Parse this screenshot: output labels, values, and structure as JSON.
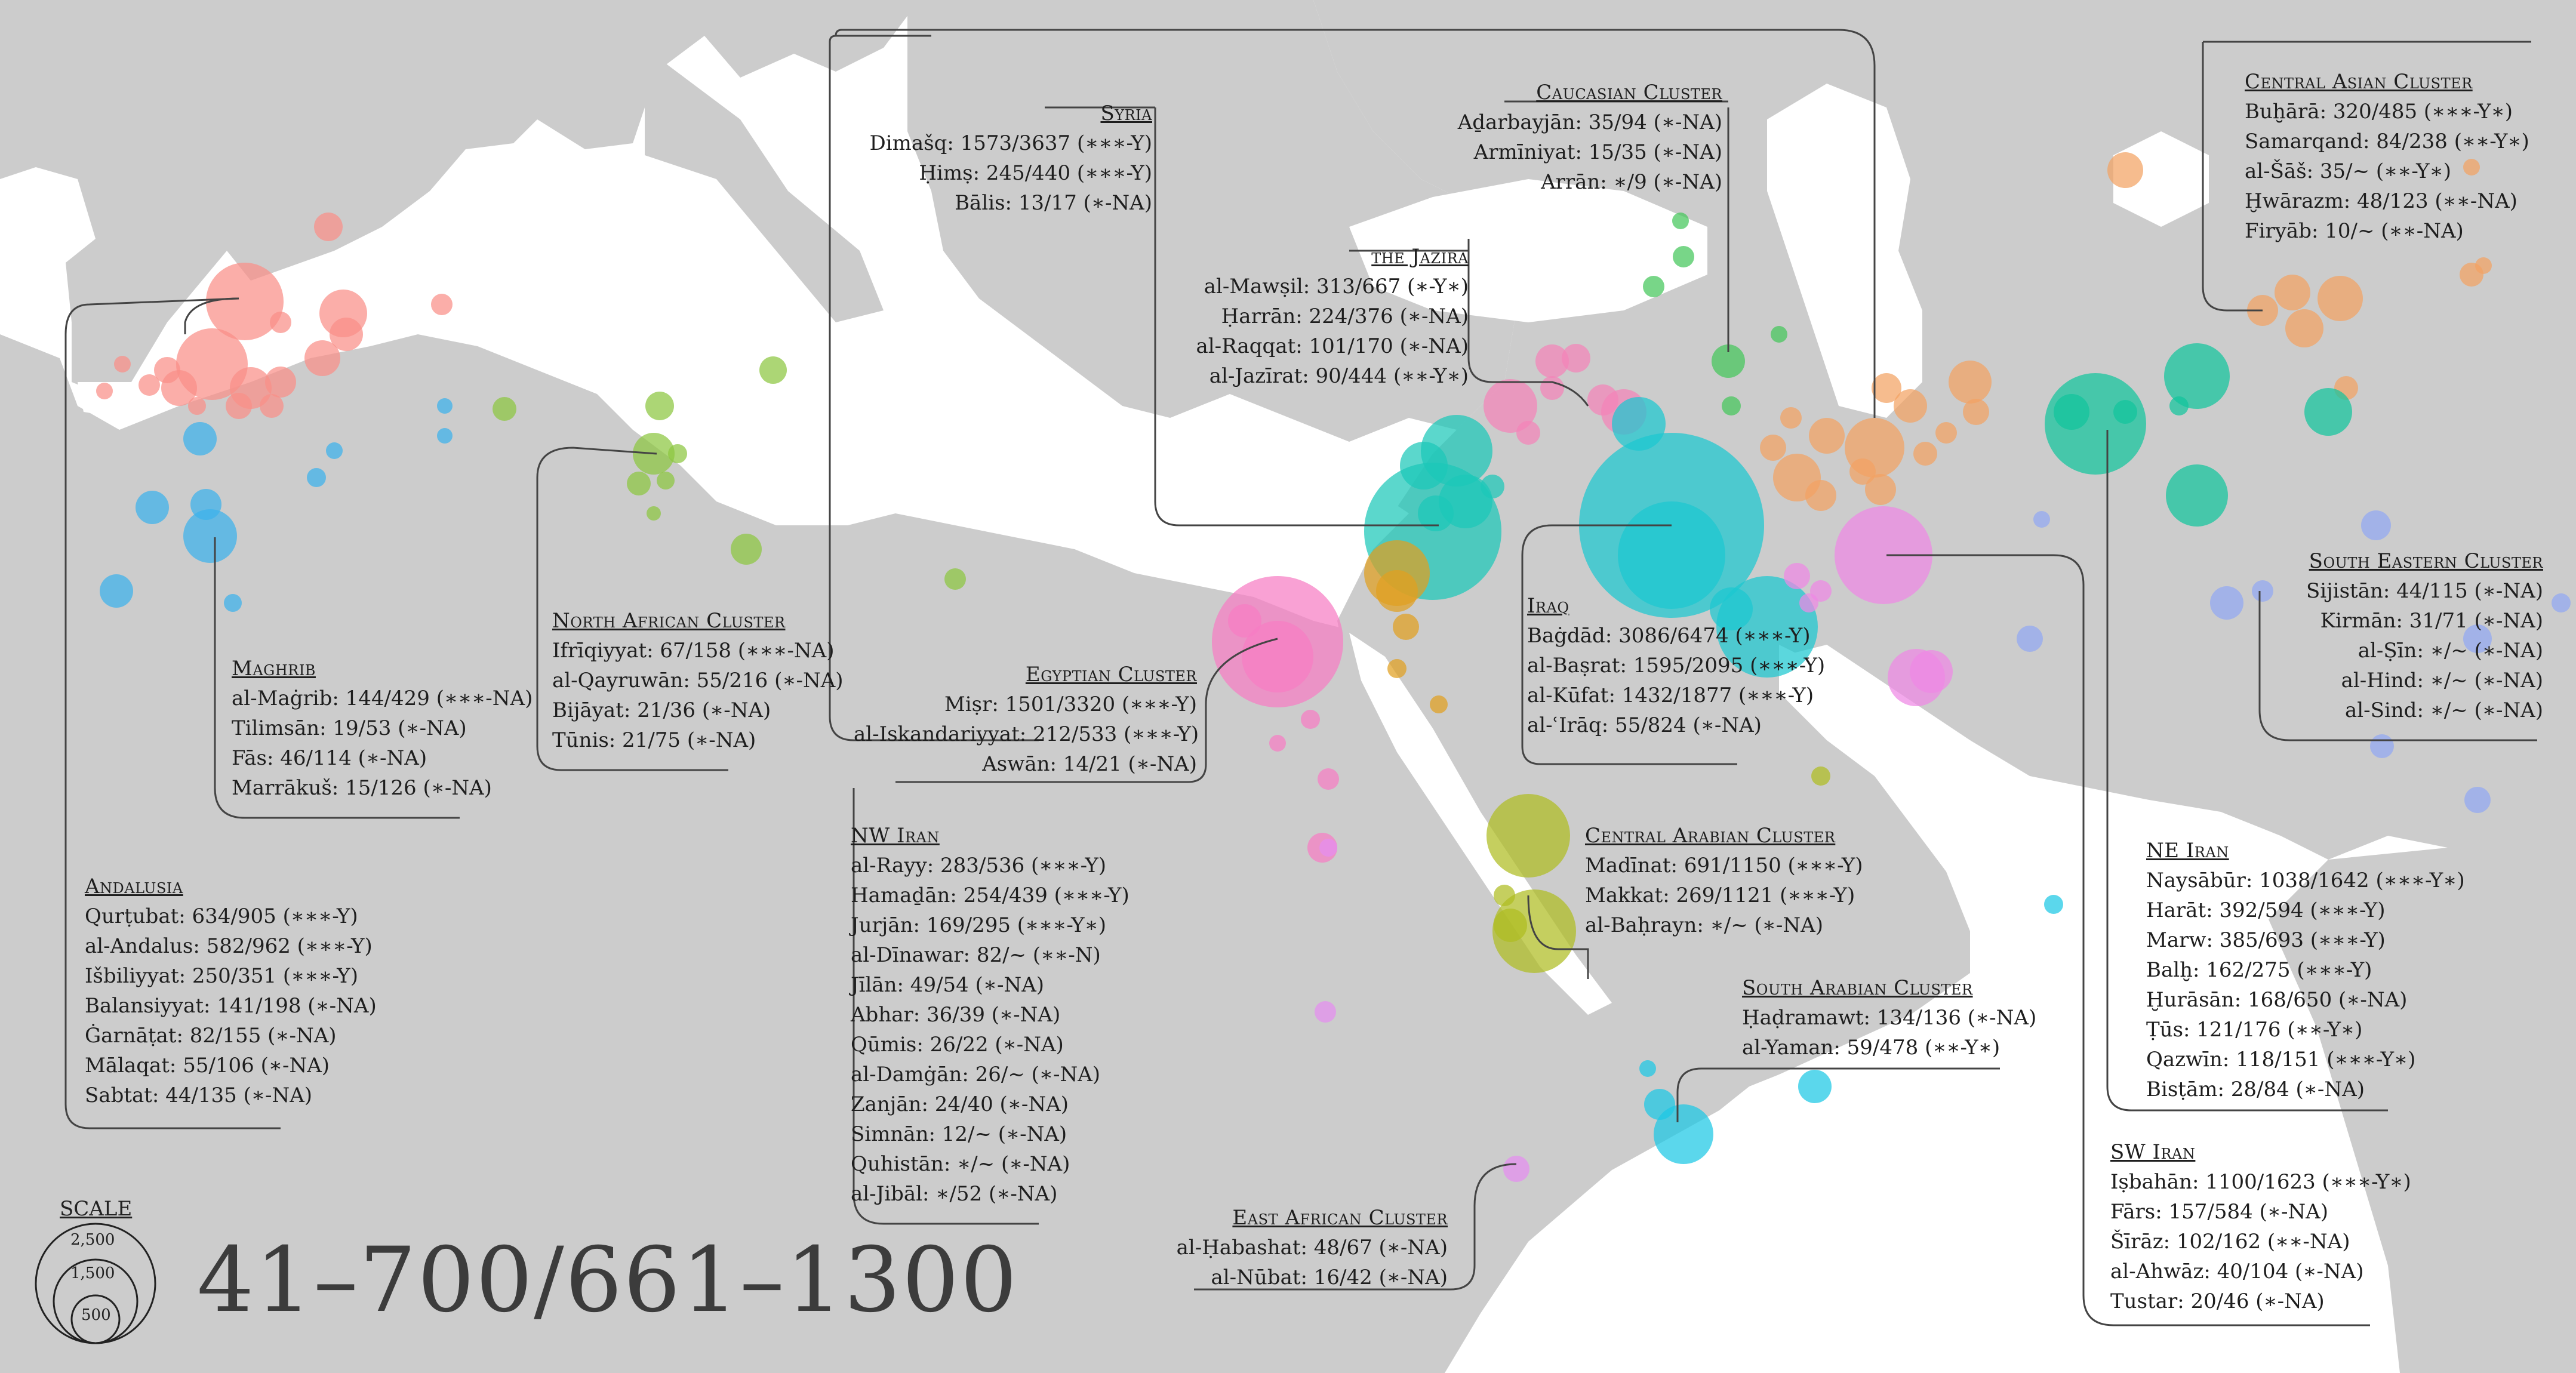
{
  "colors": {
    "land": "#cccccc",
    "sea": "#ffffff",
    "andalusia": "#f98f88",
    "maghrib": "#3bb2ec",
    "north_africa": "#8cc640",
    "egypt": "#f67dc3",
    "syria": "#1cc8b8",
    "iraq": "#1cc8d0",
    "jazira": "#f483b8",
    "caucasus": "#44c65a",
    "central_asia": "#f2a263",
    "nw_iran": "#f2a263",
    "ne_iran": "#12c59c",
    "southeast": "#92a8f2",
    "central_arabia": "#aebd21",
    "south_arabia": "#1cc8e4",
    "east_africa": "#e58ef0",
    "palestine": "#e0a020",
    "sw_iran": "#ee88e4"
  },
  "title": "41–700/661–1300",
  "scale": {
    "label": "SCALE",
    "values": [
      "2,500",
      "1,500",
      "500"
    ]
  },
  "clusters": {
    "syria": {
      "title": "Syria",
      "rows": [
        "Dimašq: 1573/3637 (∗∗∗-Y)",
        "Ḥimṣ: 245/440 (∗∗∗-Y)",
        "Bālis: 13/17 (∗-NA)"
      ]
    },
    "caucasus": {
      "title": "Caucasian Cluster",
      "rows": [
        "Aḏarbayjān: 35/94 (∗-NA)",
        "Armīniyat: 15/35 (∗-NA)",
        "Arrān: ∗/9 (∗-NA)"
      ]
    },
    "central_asia": {
      "title": "Central Asian Cluster",
      "rows": [
        "Buḫārā: 320/485 (∗∗∗-Y∗)",
        "Samarqand: 84/238 (∗∗-Y∗)",
        "al-Šāš: 35/~ (∗∗-Y∗)",
        "Ḫwārazm: 48/123 (∗∗-NA)",
        "Firyāb: 10/~ (∗∗-NA)"
      ]
    },
    "jazira": {
      "title": "the Jazira",
      "rows": [
        "al-Mawṣil: 313/667 (∗-Y∗)",
        "Ḥarrān: 224/376 (∗-NA)",
        "al-Raqqat: 101/170 (∗-NA)",
        "al-Jazīrat: 90/444 (∗∗-Y∗)"
      ]
    },
    "north_africa": {
      "title": "North African Cluster",
      "rows": [
        "Ifrīqiyyat: 67/158 (∗∗∗-NA)",
        "al-Qayruwān: 55/216 (∗-NA)",
        "Bijāyat: 21/36 (∗-NA)",
        "Tūnis: 21/75 (∗-NA)"
      ]
    },
    "maghrib": {
      "title": "Maghrib",
      "rows": [
        "al-Maġrib: 144/429 (∗∗∗-NA)",
        "Tilimsān: 19/53 (∗-NA)",
        "Fās: 46/114 (∗-NA)",
        "Marrākuš: 15/126 (∗-NA)"
      ]
    },
    "andalusia": {
      "title": "Andalusia",
      "rows": [
        "Qurṭubat: 634/905 (∗∗∗-Y)",
        "al-Andalus: 582/962 (∗∗∗-Y)",
        "Išbiliyyat: 250/351 (∗∗∗-Y)",
        "Balansiyyat: 141/198 (∗-NA)",
        "Ġarnāṭat: 82/155 (∗-NA)",
        "Mālaqat: 55/106 (∗-NA)",
        "Sabtat: 44/135 (∗-NA)"
      ]
    },
    "egypt": {
      "title": "Egyptian Cluster",
      "rows": [
        "Miṣr: 1501/3320 (∗∗∗-Y)",
        "al-Iskandariyyat: 212/533 (∗∗∗-Y)",
        "Aswān: 14/21 (∗-NA)"
      ]
    },
    "iraq": {
      "title": "Iraq",
      "rows": [
        "Baġdād: 3086/6474 (∗∗∗-Y)",
        "al-Baṣrat: 1595/2095 (∗∗∗-Y)",
        "al-Kūfat: 1432/1877 (∗∗∗-Y)",
        "al-ʿIrāq: 55/824 (∗-NA)"
      ]
    },
    "southeast": {
      "title": "South Eastern Cluster",
      "rows": [
        "Sijistān: 44/115 (∗-NA)",
        "Kirmān: 31/71 (∗-NA)",
        "al-Ṣīn: ∗/~ (∗-NA)",
        "al-Hind: ∗/~ (∗-NA)",
        "al-Sind: ∗/~ (∗-NA)"
      ]
    },
    "nw_iran": {
      "title": "NW Iran",
      "rows": [
        "al-Rayy: 283/536 (∗∗∗-Y)",
        "Hamaḏān: 254/439 (∗∗∗-Y)",
        "Jurjān: 169/295 (∗∗∗-Y∗)",
        "al-Dīnawar: 82/~ (∗∗-N)",
        "Jīlān: 49/54 (∗-NA)",
        "Abhar: 36/39 (∗-NA)",
        "Qūmis: 26/22 (∗-NA)",
        "al-Damġān: 26/~ (∗-NA)",
        "Zanjān: 24/40 (∗-NA)",
        "Simnān: 12/~ (∗-NA)",
        "Quhistān: ∗/~ (∗-NA)",
        "al-Jibāl: ∗/52 (∗-NA)"
      ]
    },
    "central_arabia": {
      "title": "Central Arabian Cluster",
      "rows": [
        "Madīnat: 691/1150 (∗∗∗-Y)",
        "Makkat: 269/1121 (∗∗∗-Y)",
        "al-Baḥrayn: ∗/~ (∗-NA)"
      ]
    },
    "ne_iran": {
      "title": "NE Iran",
      "rows": [
        "Naysābūr: 1038/1642 (∗∗∗-Y∗)",
        "Harāt: 392/594 (∗∗∗-Y)",
        "Marw: 385/693 (∗∗∗-Y)",
        "Balḫ: 162/275 (∗∗∗-Y)",
        "Ḫurāsān: 168/650 (∗-NA)",
        "Ṭūs: 121/176 (∗∗-Y∗)",
        "Qazwīn: 118/151 (∗∗∗-Y∗)",
        "Bisṭām: 28/84 (∗-NA)"
      ]
    },
    "south_arabia": {
      "title": "South Arabian Cluster",
      "rows": [
        "Ḥaḍramawt: 134/136 (∗-NA)",
        "al-Yaman: 59/478 (∗∗-Y∗)"
      ]
    },
    "east_africa": {
      "title": "East African Cluster",
      "rows": [
        "al-Ḥabashat: 48/67 (∗-NA)",
        "al-Nūbat: 16/42 (∗-NA)"
      ]
    },
    "sw_iran": {
      "title": "SW Iran",
      "rows": [
        "Iṣbahān: 1100/1623 (∗∗∗-Y∗)",
        "Fārs: 157/584 (∗-NA)",
        "Šīrāz: 102/162 (∗∗-NA)",
        "al-Ahwāz: 40/104 (∗-NA)",
        "Tustar: 20/46 (∗-NA)"
      ]
    }
  }
}
